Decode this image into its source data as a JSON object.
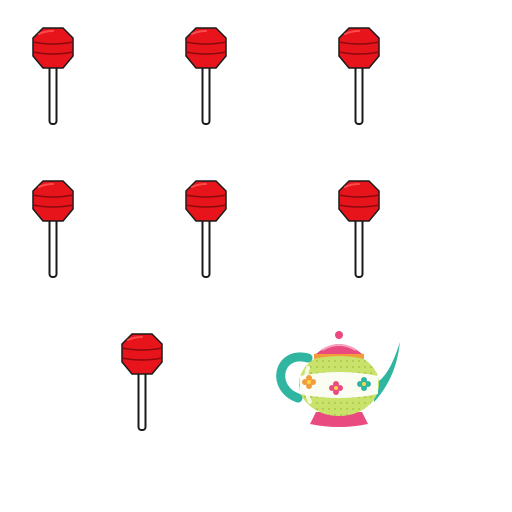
{
  "scene": {
    "lollipop_count": 7,
    "teapot_count": 1,
    "colors": {
      "candy": "#e8141c",
      "candy_highlight": "#ff5a5a",
      "candy_outline": "#1a1a1a",
      "stick": "#ffffff",
      "teapot_body": "#c9e26a",
      "teapot_spout": "#2fb5a0",
      "teapot_lid": "#e94a7f",
      "teapot_band": "#f39c3a"
    },
    "icons": [
      "lollipop-icon",
      "teapot-icon"
    ]
  }
}
